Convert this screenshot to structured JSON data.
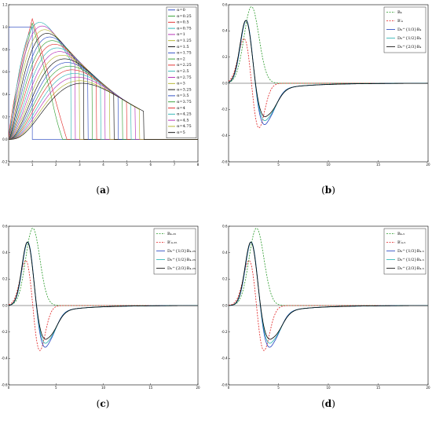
{
  "chart_data": [
    {
      "caption": "(a)",
      "type": "line",
      "xlim": [
        0,
        8
      ],
      "ylim": [
        -0.2,
        1.2
      ],
      "xticks": [
        0,
        1,
        2,
        3,
        4,
        5,
        6,
        7,
        8
      ],
      "yticks": [
        "-0.2",
        "0.0",
        "0.2",
        "0.4",
        "0.6",
        "0.8",
        "1.0",
        "1.2"
      ],
      "legend_position": "top-right",
      "alphas": [
        "0",
        "0.25",
        "0.5",
        "0.75",
        "1",
        "1.25",
        "1.5",
        "1.75",
        "2",
        "2.25",
        "2.5",
        "2.75",
        "3",
        "3.25",
        "3.5",
        "3.75",
        "4",
        "4.25",
        "4.5",
        "4.75",
        "5"
      ],
      "legend_prefix": "α=",
      "colors": [
        "#1f3fbf",
        "#2a9a2a",
        "#e02020",
        "#20b0b0",
        "#b020b0",
        "#b0b020",
        "#000000",
        "#1f3fbf",
        "#2a9a2a",
        "#e02020",
        "#20b0b0",
        "#b020b0",
        "#b0b020",
        "#000000",
        "#1f3fbf",
        "#2a9a2a",
        "#e02020",
        "#20b0b0",
        "#b020b0",
        "#b0b020",
        "#000000"
      ]
    },
    {
      "caption": "(b)",
      "type": "line",
      "xlim": [
        0,
        20
      ],
      "ylim": [
        -0.6,
        0.6
      ],
      "xticks": [
        "0",
        "5",
        "10",
        "15",
        "20"
      ],
      "yticks": [
        "-0.6",
        "-0.4",
        "-0.2",
        "0.0",
        "0.2",
        "0.4",
        "0.6"
      ],
      "legend_position": "top-right",
      "series": [
        {
          "name": "B₄",
          "style": "dashed",
          "color": "#2a9a2a"
        },
        {
          "name": "B′₄",
          "style": "dashed",
          "color": "#e02020"
        },
        {
          "name": "D₀^{1/3}B₄",
          "style": "solid",
          "color": "#1f3fbf"
        },
        {
          "name": "D₀^{1/2}B₄",
          "style": "solid",
          "color": "#20b0b0"
        },
        {
          "name": "D₀^{2/3}B₄",
          "style": "solid",
          "color": "#000000"
        }
      ]
    },
    {
      "caption": "(c)",
      "type": "line",
      "xlim": [
        0,
        20
      ],
      "ylim": [
        -0.6,
        0.6
      ],
      "xticks": [
        "0",
        "5",
        "10",
        "15",
        "20"
      ],
      "yticks": [
        "-0.6",
        "-0.4",
        "-0.2",
        "0.0",
        "0.2",
        "0.4",
        "0.6"
      ],
      "legend_position": "top-right",
      "series": [
        {
          "name": "B₄.₂₅",
          "style": "dashed",
          "color": "#2a9a2a"
        },
        {
          "name": "B′₄.₂₅",
          "style": "dashed",
          "color": "#e02020"
        },
        {
          "name": "D₀^{1/3}B₄.₂₅",
          "style": "solid",
          "color": "#1f3fbf"
        },
        {
          "name": "D₀^{1/2}B₄.₂₅",
          "style": "solid",
          "color": "#20b0b0"
        },
        {
          "name": "D₀^{2/3}B₄.₂₅",
          "style": "solid",
          "color": "#000000"
        }
      ]
    },
    {
      "caption": "(d)",
      "type": "line",
      "xlim": [
        0,
        20
      ],
      "ylim": [
        -0.6,
        0.6
      ],
      "xticks": [
        "0",
        "5",
        "10",
        "15",
        "20"
      ],
      "yticks": [
        "-0.6",
        "-0.4",
        "-0.2",
        "0.0",
        "0.2",
        "0.4",
        "0.6"
      ],
      "legend_position": "top-right",
      "series": [
        {
          "name": "B₄.₅",
          "style": "dashed",
          "color": "#2a9a2a"
        },
        {
          "name": "B′₄.₅",
          "style": "dashed",
          "color": "#e02020"
        },
        {
          "name": "D₀^{1/3}B₄.₅",
          "style": "solid",
          "color": "#1f3fbf"
        },
        {
          "name": "D₀^{1/2}B₄.₅",
          "style": "solid",
          "color": "#20b0b0"
        },
        {
          "name": "D₀^{2/3}B₄.₅",
          "style": "solid",
          "color": "#000000"
        }
      ]
    }
  ]
}
